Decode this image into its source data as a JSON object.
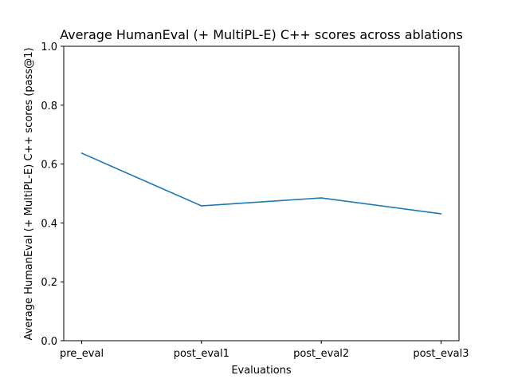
{
  "chart_data": {
    "type": "line",
    "title": "Average HumanEval (+ MultiPL-E) C++ scores across ablations",
    "xlabel": "Evaluations",
    "ylabel": "Average HumanEval (+ MultiPL-E) C++ scores (pass@1)",
    "categories": [
      "pre_eval",
      "post_eval1",
      "post_eval2",
      "post_eval3"
    ],
    "series": [
      {
        "values": [
          0.637,
          0.458,
          0.485,
          0.431
        ],
        "color": "#1f77b4"
      }
    ],
    "ylim": [
      0,
      1.0
    ],
    "yticks": [
      "0.0",
      "0.2",
      "0.4",
      "0.6",
      "0.8",
      "1.0"
    ],
    "grid": false,
    "legend": "none"
  }
}
